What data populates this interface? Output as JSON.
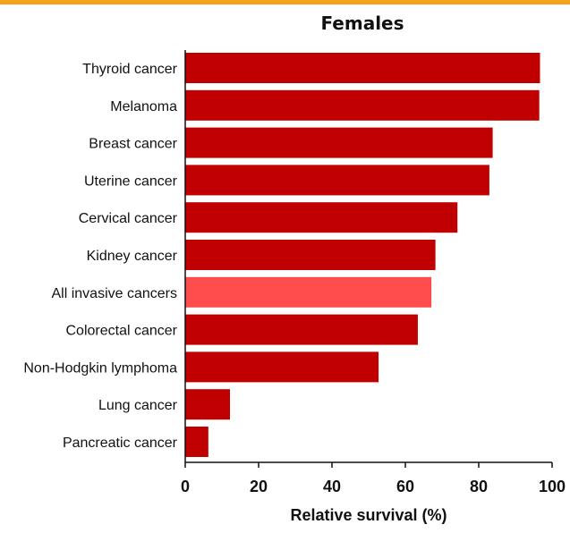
{
  "colors": {
    "top_rule": "#f7a21b",
    "bar": "#c00000",
    "bar_highlight": "#ff4d4d",
    "axis": "#111111"
  },
  "chart_data": {
    "type": "bar",
    "orientation": "horizontal",
    "title": "Females",
    "xlabel": "Relative survival (%)",
    "ylabel": "",
    "xlim": [
      0,
      100
    ],
    "xticks": [
      0,
      20,
      40,
      60,
      80,
      100
    ],
    "grid": false,
    "categories": [
      "Thyroid cancer",
      "Melanoma",
      "Breast cancer",
      "Uterine cancer",
      "Cervical cancer",
      "Kidney cancer",
      "All invasive cancers",
      "Colorectal cancer",
      "Non-Hodgkin lymphoma",
      "Lung cancer",
      "Pancreatic cancer"
    ],
    "values": [
      96.7,
      96.5,
      83.8,
      82.9,
      74.2,
      68.2,
      67.1,
      63.4,
      52.7,
      12.2,
      6.3
    ],
    "highlight_category": "All invasive cancers"
  }
}
